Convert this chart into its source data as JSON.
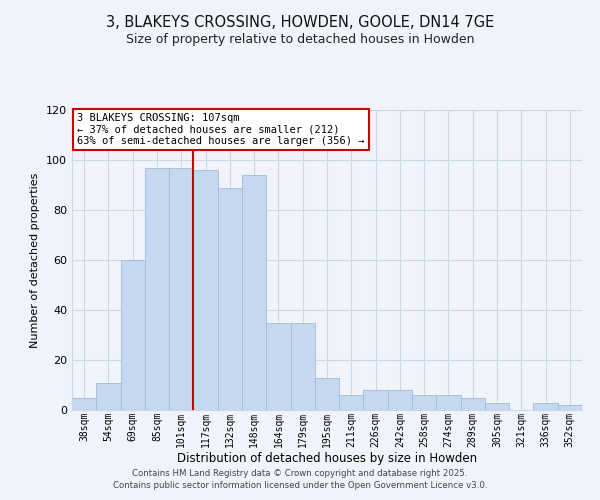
{
  "title": "3, BLAKEYS CROSSING, HOWDEN, GOOLE, DN14 7GE",
  "subtitle": "Size of property relative to detached houses in Howden",
  "xlabel": "Distribution of detached houses by size in Howden",
  "ylabel": "Number of detached properties",
  "bar_labels": [
    "38sqm",
    "54sqm",
    "69sqm",
    "85sqm",
    "101sqm",
    "117sqm",
    "132sqm",
    "148sqm",
    "164sqm",
    "179sqm",
    "195sqm",
    "211sqm",
    "226sqm",
    "242sqm",
    "258sqm",
    "274sqm",
    "289sqm",
    "305sqm",
    "321sqm",
    "336sqm",
    "352sqm"
  ],
  "bar_values": [
    5,
    11,
    60,
    97,
    97,
    96,
    89,
    94,
    35,
    35,
    13,
    6,
    8,
    8,
    6,
    6,
    5,
    3,
    0,
    3,
    2
  ],
  "bar_color": "#c5d8f0",
  "bar_edge_color": "#a0bcd8",
  "vline_x": 4.5,
  "vline_color": "#cc0000",
  "annotation_text": "3 BLAKEYS CROSSING: 107sqm\n← 37% of detached houses are smaller (212)\n63% of semi-detached houses are larger (356) →",
  "annotation_box_color": "#ffffff",
  "annotation_box_edge": "#cc0000",
  "ylim": [
    0,
    120
  ],
  "yticks": [
    0,
    20,
    40,
    60,
    80,
    100,
    120
  ],
  "footer1": "Contains HM Land Registry data © Crown copyright and database right 2025.",
  "footer2": "Contains public sector information licensed under the Open Government Licence v3.0.",
  "bg_color": "#f0f4fa",
  "grid_color": "#c8d8e8",
  "title_fontsize": 10.5,
  "subtitle_fontsize": 9
}
